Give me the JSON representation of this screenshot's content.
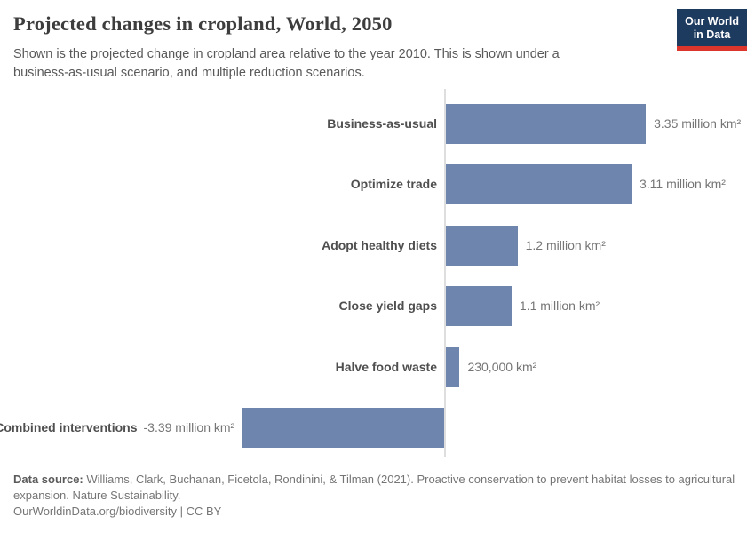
{
  "header": {
    "title": "Projected changes in cropland, World, 2050",
    "subtitle": "Shown is the projected change in cropland area relative to the year 2010. This is shown under a business-as-usual scenario, and multiple reduction scenarios.",
    "logo": {
      "line1": "Our World",
      "line2": "in Data"
    }
  },
  "colors": {
    "bar": "#6e85ad",
    "axis_line": "#dedede",
    "logo_background": "#1d3a5f",
    "logo_stripe": "#dc352b"
  },
  "chart_data": {
    "type": "bar",
    "orientation": "horizontal",
    "title": "Projected changes in cropland, World, 2050",
    "unit": "million km²",
    "categories": [
      "Business-as-usual",
      "Optimize trade",
      "Adopt healthy diets",
      "Close yield gaps",
      "Halve food waste",
      "Combined interventions"
    ],
    "values": [
      3.35,
      3.11,
      1.2,
      1.1,
      0.23,
      -3.39
    ],
    "value_labels": [
      "3.35 million km²",
      "3.11 million km²",
      "1.2 million km²",
      "1.1 million km²",
      "230,000 km²",
      "-3.39 million km²"
    ],
    "baseline": 0,
    "xlim": [
      -3.39,
      3.35
    ],
    "grid": false,
    "legend": false,
    "xlabel": "",
    "ylabel": ""
  },
  "footer": {
    "source_label": "Data source:",
    "source_text": " Williams, Clark, Buchanan, Ficetola, Rondinini, & Tilman (2021). Proactive conservation to prevent habitat losses to agricultural expansion. Nature Sustainability.",
    "link_line": "OurWorldinData.org/biodiversity | CC BY"
  }
}
